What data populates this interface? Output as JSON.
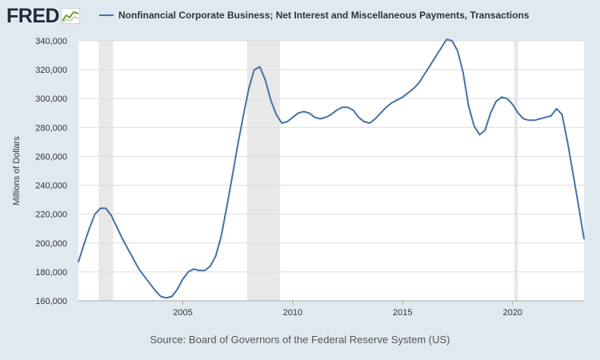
{
  "header": {
    "logo_text": "FRED",
    "logo_icon": "fred-line-graph-icon"
  },
  "footer": {
    "source": "Source: Board of Governors of the Federal Reserve System (US)"
  },
  "colors": {
    "background": "#e1e9f0",
    "plot_background": "#ffffff",
    "series": "#4572a7",
    "recession": "#e8e8e8",
    "grid": "#dddddd"
  },
  "chart_data": {
    "type": "line",
    "title": "",
    "xlabel": "",
    "ylabel": "Millions of Dollars",
    "ylim": [
      160000,
      340000
    ],
    "xlim": [
      2000.25,
      2023.25
    ],
    "grid": true,
    "legend_position": "top",
    "y_ticks": [
      160000,
      180000,
      200000,
      220000,
      240000,
      260000,
      280000,
      300000,
      320000,
      340000
    ],
    "y_tick_labels": [
      "160,000",
      "180,000",
      "200,000",
      "220,000",
      "240,000",
      "260,000",
      "280,000",
      "300,000",
      "320,000",
      "340,000"
    ],
    "x_ticks": [
      2005,
      2010,
      2015,
      2020
    ],
    "x_tick_labels": [
      "2005",
      "2010",
      "2015",
      "2020"
    ],
    "recessions": [
      {
        "start": 2001.17,
        "end": 2001.83
      },
      {
        "start": 2007.92,
        "end": 2009.42
      },
      {
        "start": 2020.08,
        "end": 2020.25
      }
    ],
    "series": [
      {
        "name": "Nonfinancial Corporate Business; Net Interest and Miscellaneous Payments, Transactions",
        "x": [
          2000.25,
          2000.5,
          2000.75,
          2001.0,
          2001.25,
          2001.5,
          2001.75,
          2002.0,
          2002.25,
          2002.5,
          2002.75,
          2003.0,
          2003.25,
          2003.5,
          2003.75,
          2004.0,
          2004.25,
          2004.5,
          2004.75,
          2005.0,
          2005.25,
          2005.5,
          2005.75,
          2006.0,
          2006.25,
          2006.5,
          2006.75,
          2007.0,
          2007.25,
          2007.5,
          2007.75,
          2008.0,
          2008.25,
          2008.5,
          2008.75,
          2009.0,
          2009.25,
          2009.5,
          2009.75,
          2010.0,
          2010.25,
          2010.5,
          2010.75,
          2011.0,
          2011.25,
          2011.5,
          2011.75,
          2012.0,
          2012.25,
          2012.5,
          2012.75,
          2013.0,
          2013.25,
          2013.5,
          2013.75,
          2014.0,
          2014.25,
          2014.5,
          2014.75,
          2015.0,
          2015.25,
          2015.5,
          2015.75,
          2016.0,
          2016.25,
          2016.5,
          2016.75,
          2017.0,
          2017.25,
          2017.5,
          2017.75,
          2018.0,
          2018.25,
          2018.5,
          2018.75,
          2019.0,
          2019.25,
          2019.5,
          2019.75,
          2020.0,
          2020.25,
          2020.5,
          2020.75,
          2021.0,
          2021.25,
          2021.5,
          2021.75,
          2022.0,
          2022.25,
          2022.5,
          2022.75,
          2023.0,
          2023.25
        ],
        "values": [
          187000,
          199000,
          210000,
          220000,
          224000,
          224000,
          219000,
          211000,
          203000,
          196000,
          189000,
          182000,
          177000,
          172000,
          167000,
          163000,
          162000,
          163000,
          168000,
          175000,
          180000,
          182000,
          181000,
          181000,
          184000,
          191000,
          205000,
          225000,
          246000,
          268000,
          288000,
          307000,
          320000,
          322000,
          313000,
          299000,
          289000,
          283000,
          284000,
          287000,
          290000,
          291000,
          290000,
          287000,
          286000,
          287000,
          289000,
          292000,
          294000,
          294000,
          292000,
          287000,
          284000,
          283000,
          286000,
          290000,
          294000,
          297000,
          299000,
          301000,
          304000,
          307000,
          311000,
          317000,
          323000,
          329000,
          335000,
          341000,
          340000,
          333000,
          318000,
          295000,
          281000,
          275000,
          278000,
          290000,
          298000,
          301000,
          300000,
          296000,
          290000,
          286000,
          285000,
          285000,
          286000,
          287000,
          288000,
          293000,
          289000,
          270000,
          248000,
          226000,
          203000
        ]
      }
    ]
  }
}
